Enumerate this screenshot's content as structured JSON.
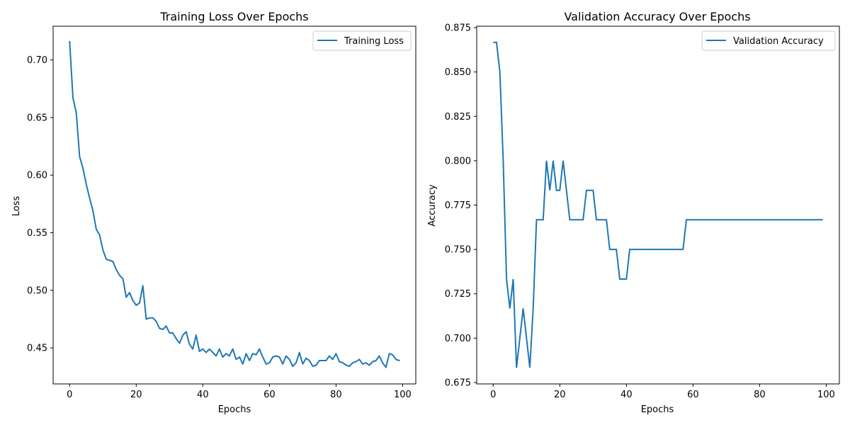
{
  "chart_data": [
    {
      "type": "line",
      "title": "Training Loss Over Epochs",
      "xlabel": "Epochs",
      "ylabel": "Loss",
      "xlim": [
        -4.95,
        103.95
      ],
      "ylim": [
        0.4187,
        0.7293
      ],
      "xticks": [
        0,
        20,
        40,
        60,
        80,
        100
      ],
      "yticks": [
        0.45,
        0.5,
        0.55,
        0.6,
        0.65,
        0.7
      ],
      "ytick_labels": [
        "0.45",
        "0.50",
        "0.55",
        "0.60",
        "0.65",
        "0.70"
      ],
      "legend": "upper-right",
      "grid": false,
      "series": [
        {
          "name": "Training Loss",
          "color": "#1f77b4",
          "x": [
            0,
            1,
            2,
            3,
            4,
            5,
            6,
            7,
            8,
            9,
            10,
            11,
            12,
            13,
            14,
            15,
            16,
            17,
            18,
            19,
            20,
            21,
            22,
            23,
            24,
            25,
            26,
            27,
            28,
            29,
            30,
            31,
            32,
            33,
            34,
            35,
            36,
            37,
            38,
            39,
            40,
            41,
            42,
            43,
            44,
            45,
            46,
            47,
            48,
            49,
            50,
            51,
            52,
            53,
            54,
            55,
            56,
            57,
            58,
            59,
            60,
            61,
            62,
            63,
            64,
            65,
            66,
            67,
            68,
            69,
            70,
            71,
            72,
            73,
            74,
            75,
            76,
            77,
            78,
            79,
            80,
            81,
            82,
            83,
            84,
            85,
            86,
            87,
            88,
            89,
            90,
            91,
            92,
            93,
            94,
            95,
            96,
            97,
            98,
            99
          ],
          "values": [
            0.716,
            0.667,
            0.654,
            0.616,
            0.606,
            0.592,
            0.58,
            0.569,
            0.553,
            0.548,
            0.535,
            0.527,
            0.526,
            0.525,
            0.518,
            0.513,
            0.51,
            0.494,
            0.498,
            0.491,
            0.487,
            0.489,
            0.504,
            0.475,
            0.476,
            0.476,
            0.473,
            0.467,
            0.466,
            0.469,
            0.463,
            0.463,
            0.458,
            0.454,
            0.461,
            0.464,
            0.453,
            0.449,
            0.461,
            0.447,
            0.449,
            0.446,
            0.449,
            0.446,
            0.443,
            0.449,
            0.442,
            0.445,
            0.443,
            0.449,
            0.44,
            0.442,
            0.436,
            0.445,
            0.439,
            0.445,
            0.444,
            0.449,
            0.442,
            0.436,
            0.437,
            0.442,
            0.443,
            0.442,
            0.436,
            0.443,
            0.44,
            0.434,
            0.437,
            0.446,
            0.436,
            0.441,
            0.439,
            0.434,
            0.435,
            0.439,
            0.439,
            0.439,
            0.443,
            0.44,
            0.445,
            0.438,
            0.437,
            0.435,
            0.434,
            0.437,
            0.438,
            0.44,
            0.436,
            0.437,
            0.435,
            0.438,
            0.439,
            0.443,
            0.437,
            0.433,
            0.445,
            0.444,
            0.44,
            0.439
          ]
        }
      ]
    },
    {
      "type": "line",
      "title": "Validation Accuracy Over Epochs",
      "xlabel": "Epochs",
      "ylabel": "Accuracy",
      "xlim": [
        -4.95,
        103.95
      ],
      "ylim": [
        0.6742,
        0.8758
      ],
      "xticks": [
        0,
        20,
        40,
        60,
        80,
        100
      ],
      "yticks": [
        0.675,
        0.7,
        0.725,
        0.75,
        0.775,
        0.8,
        0.825,
        0.85,
        0.875
      ],
      "ytick_labels": [
        "0.675",
        "0.700",
        "0.725",
        "0.750",
        "0.775",
        "0.800",
        "0.825",
        "0.850",
        "0.875"
      ],
      "legend": "upper-right",
      "grid": false,
      "series": [
        {
          "name": "Validation Accuracy",
          "color": "#1f77b4",
          "x": [
            0,
            1,
            2,
            3,
            4,
            5,
            6,
            7,
            8,
            9,
            10,
            11,
            12,
            13,
            14,
            15,
            16,
            17,
            18,
            19,
            20,
            21,
            22,
            23,
            24,
            25,
            26,
            27,
            28,
            29,
            30,
            31,
            32,
            33,
            34,
            35,
            36,
            37,
            38,
            39,
            40,
            41,
            42,
            43,
            44,
            45,
            46,
            47,
            48,
            49,
            50,
            51,
            52,
            53,
            54,
            55,
            56,
            57,
            58,
            59,
            60,
            61,
            62,
            63,
            64,
            65,
            66,
            67,
            68,
            69,
            70,
            71,
            72,
            73,
            74,
            75,
            76,
            77,
            78,
            79,
            80,
            81,
            82,
            83,
            84,
            85,
            86,
            87,
            88,
            89,
            90,
            91,
            92,
            93,
            94,
            95,
            96,
            97,
            98,
            99
          ],
          "values": [
            0.8667,
            0.8667,
            0.85,
            0.8,
            0.7333,
            0.7167,
            0.7333,
            0.6833,
            0.7,
            0.7167,
            0.7,
            0.6833,
            0.7167,
            0.7667,
            0.7667,
            0.7667,
            0.8,
            0.7833,
            0.8,
            0.7833,
            0.7833,
            0.8,
            0.7833,
            0.7667,
            0.7667,
            0.7667,
            0.7667,
            0.7667,
            0.7833,
            0.7833,
            0.7833,
            0.7667,
            0.7667,
            0.7667,
            0.7667,
            0.75,
            0.75,
            0.75,
            0.7333,
            0.7333,
            0.7333,
            0.75,
            0.75,
            0.75,
            0.75,
            0.75,
            0.75,
            0.75,
            0.75,
            0.75,
            0.75,
            0.75,
            0.75,
            0.75,
            0.75,
            0.75,
            0.75,
            0.75,
            0.7667,
            0.7667,
            0.7667,
            0.7667,
            0.7667,
            0.7667,
            0.7667,
            0.7667,
            0.7667,
            0.7667,
            0.7667,
            0.7667,
            0.7667,
            0.7667,
            0.7667,
            0.7667,
            0.7667,
            0.7667,
            0.7667,
            0.7667,
            0.7667,
            0.7667,
            0.7667,
            0.7667,
            0.7667,
            0.7667,
            0.7667,
            0.7667,
            0.7667,
            0.7667,
            0.7667,
            0.7667,
            0.7667,
            0.7667,
            0.7667,
            0.7667,
            0.7667,
            0.7667,
            0.7667,
            0.7667,
            0.7667,
            0.7667
          ]
        }
      ]
    }
  ]
}
